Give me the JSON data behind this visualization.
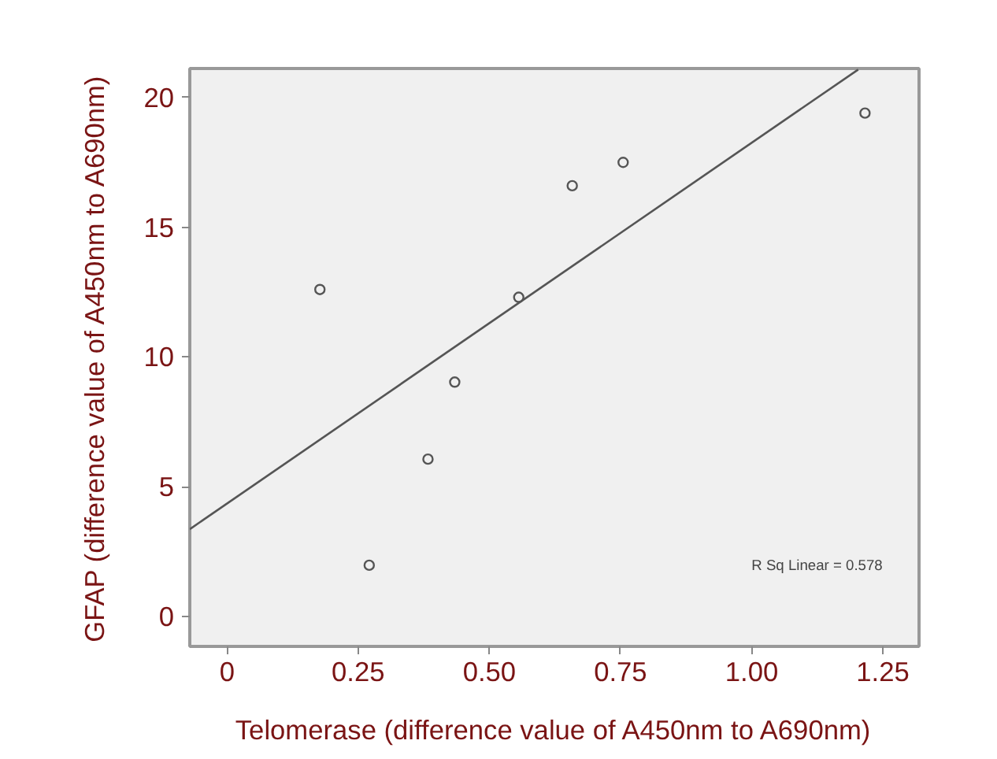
{
  "chart_data": {
    "type": "scatter",
    "xlabel": "Telomerase (difference value of A450nm to A690nm)",
    "ylabel": "GFAP (difference value of A450nm to A690nm)",
    "series": [
      {
        "color": "#555555",
        "x": [
          0.177,
          0.271,
          0.383,
          0.434,
          0.556,
          0.658,
          0.755,
          1.216
        ],
        "values": [
          12.6,
          1.97,
          6.06,
          9.03,
          12.3,
          16.6,
          17.5,
          19.4
        ]
      },
      {
        "type": "line",
        "color": "#555555",
        "marker": "none",
        "x": [
          -0.071,
          1.203
        ],
        "values": [
          3.36,
          21.08
        ]
      }
    ],
    "annotations": [
      "R Sq Linear = 0.578"
    ],
    "marker": "circle",
    "xlim": [
      -0.071,
      1.319
    ],
    "ylim": [
      -1.16,
      21.12
    ],
    "xticks": [
      0,
      0.25,
      {
        "value": 0.5,
        "label": "0.50"
      },
      0.75,
      {
        "value": 1.0,
        "label": "1.00"
      },
      1.25
    ],
    "yticks": [
      0,
      5,
      10,
      15,
      20
    ],
    "grid": false
  }
}
